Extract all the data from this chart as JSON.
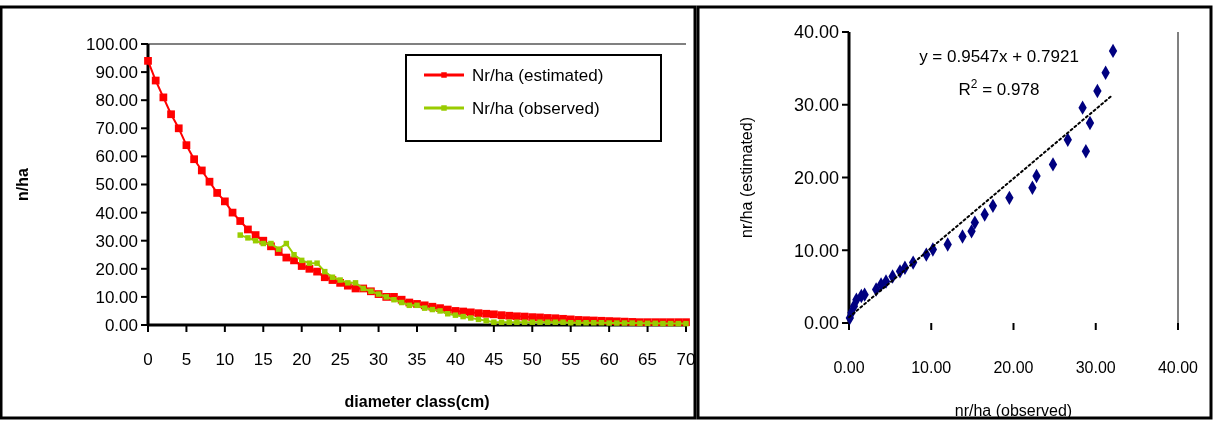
{
  "chart_data": [
    {
      "type": "line",
      "xlabel": "diameter class(cm)",
      "ylabel": "n/ha",
      "xlim": [
        0,
        70
      ],
      "xticks": [
        0,
        5,
        10,
        15,
        20,
        25,
        30,
        35,
        40,
        45,
        50,
        55,
        60,
        65,
        70
      ],
      "ylim": [
        0,
        100
      ],
      "yticks": [
        {
          "value": 0,
          "label": "0.00"
        },
        {
          "value": 10,
          "label": "10.00"
        },
        {
          "value": 20,
          "label": "20.00"
        },
        {
          "value": 30,
          "label": "30.00"
        },
        {
          "value": 40,
          "label": "40.00"
        },
        {
          "value": 50,
          "label": "50.00"
        },
        {
          "value": 60,
          "label": "60.00"
        },
        {
          "value": 70,
          "label": "70.00"
        },
        {
          "value": 80,
          "label": "80.00"
        },
        {
          "value": 90,
          "label": "90.00"
        },
        {
          "value": 100,
          "label": "100.00"
        }
      ],
      "grid": false,
      "legend": "top right",
      "marker": "square",
      "line_style": "solid",
      "series": [
        {
          "name": "Nr/ha (estimated)",
          "color": "#ff0000",
          "x": [
            0,
            1,
            2,
            3,
            4,
            5,
            6,
            7,
            8,
            9,
            10,
            11,
            12,
            13,
            14,
            15,
            16,
            17,
            18,
            19,
            20,
            21,
            22,
            23,
            24,
            25,
            26,
            27,
            28,
            29,
            30,
            31,
            32,
            33,
            34,
            35,
            36,
            37,
            38,
            39,
            40,
            41,
            42,
            43,
            44,
            45,
            46,
            47,
            48,
            49,
            50,
            51,
            52,
            53,
            54,
            55,
            56,
            57,
            58,
            59,
            60,
            61,
            62,
            63,
            64,
            65,
            66,
            67,
            68,
            69,
            70
          ],
          "values": [
            94,
            87,
            81,
            75,
            70,
            64,
            59,
            55,
            51,
            47,
            44,
            40,
            37,
            34,
            32,
            30,
            28,
            26,
            24,
            23,
            21,
            20,
            19,
            17,
            16,
            15,
            14,
            13,
            13,
            12,
            11,
            10,
            10,
            9,
            8,
            7.5,
            7,
            6.5,
            6,
            5.5,
            5,
            4.8,
            4.5,
            4.2,
            4,
            3.8,
            3.5,
            3.3,
            3.1,
            3,
            2.8,
            2.7,
            2.5,
            2.4,
            2.2,
            2,
            1.8,
            1.7,
            1.6,
            1.5,
            1.4,
            1.3,
            1.2,
            1.1,
            1,
            1,
            1,
            1,
            1,
            1,
            1
          ]
        },
        {
          "name": "Nr/ha (observed)",
          "color": "#99cc00",
          "x": [
            12,
            13,
            14,
            15,
            16,
            17,
            18,
            19,
            20,
            21,
            22,
            23,
            24,
            25,
            26,
            27,
            28,
            29,
            30,
            31,
            32,
            33,
            34,
            35,
            36,
            37,
            38,
            39,
            40,
            41,
            42,
            43,
            44,
            45,
            46,
            47,
            48,
            49,
            50,
            51,
            52,
            53,
            54,
            55,
            56,
            57,
            58,
            59,
            60,
            61,
            62,
            63,
            64,
            65,
            66,
            67,
            68,
            69,
            70
          ],
          "values": [
            32,
            31,
            30,
            29,
            29,
            27,
            29,
            25,
            23,
            22,
            22,
            19,
            17,
            16,
            15,
            15,
            13,
            12,
            11,
            10,
            9,
            8,
            7,
            7,
            6,
            5.5,
            5,
            4,
            3.5,
            3,
            2.5,
            2,
            1.5,
            1,
            1,
            1,
            1,
            1,
            1,
            1,
            1,
            1,
            1,
            0.8,
            0.8,
            0.8,
            0.8,
            0.8,
            0.7,
            0.7,
            0.7,
            0.7,
            0.6,
            0.6,
            0.6,
            0.5,
            0.5,
            0.5,
            0.5
          ]
        }
      ]
    },
    {
      "type": "scatter",
      "xlabel": "nr/ha (observed)",
      "ylabel": "nr/ha (estimated)",
      "xlim": [
        0,
        40
      ],
      "xticks": [
        {
          "value": 0,
          "label": "0.00"
        },
        {
          "value": 10,
          "label": "10.00"
        },
        {
          "value": 20,
          "label": "20.00"
        },
        {
          "value": 30,
          "label": "30.00"
        },
        {
          "value": 40,
          "label": "40.00"
        }
      ],
      "ylim": [
        0,
        40
      ],
      "yticks": [
        {
          "value": 0,
          "label": "0.00"
        },
        {
          "value": 10,
          "label": "10.00"
        },
        {
          "value": 20,
          "label": "20.00"
        },
        {
          "value": 30,
          "label": "30.00"
        },
        {
          "value": 40,
          "label": "40.00"
        }
      ],
      "grid": false,
      "marker": "diamond",
      "annotations": [
        "y = 0.9547x + 0.7921",
        "R$^{2}$ = 0.978"
      ],
      "series": [
        {
          "color": "#000080",
          "x": [
            0.1,
            0.3,
            0.6,
            0.9,
            1.5,
            1.9,
            3.3,
            3.9,
            4.5,
            5.3,
            6.2,
            6.8,
            7.8,
            9.4,
            10.2,
            12.0,
            13.8,
            14.9,
            15.3,
            16.5,
            17.5,
            19.5,
            22.3,
            22.8,
            24.8,
            26.6,
            28.8,
            28.4,
            29.3,
            30.2,
            31.2,
            32.1
          ],
          "values": [
            0.7,
            1.4,
            2.3,
            3.2,
            3.7,
            3.9,
            4.6,
            5.3,
            5.7,
            6.4,
            7.1,
            7.6,
            8.3,
            9.4,
            10.1,
            10.8,
            11.9,
            12.6,
            13.8,
            14.9,
            16.1,
            17.2,
            18.6,
            20.2,
            21.8,
            25.2,
            23.6,
            29.6,
            27.5,
            31.9,
            34.4,
            37.4
          ]
        },
        {
          "type": "line",
          "color": "#000000",
          "line_style": "dotted",
          "marker": "none",
          "x": [
            0,
            31.9
          ],
          "values": [
            0.8,
            31.2
          ]
        }
      ]
    }
  ]
}
